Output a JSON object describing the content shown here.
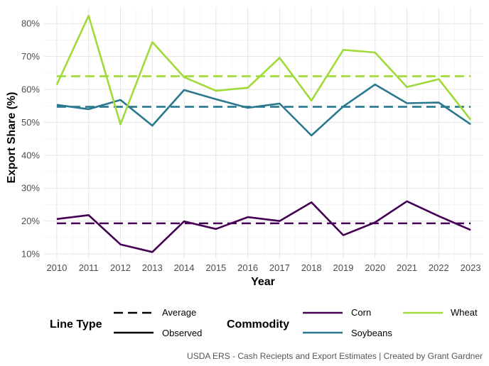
{
  "chart_data": {
    "type": "line",
    "title": "",
    "xlabel": "Year",
    "ylabel": "Export Share (%)",
    "x": [
      2010,
      2011,
      2012,
      2013,
      2014,
      2015,
      2016,
      2017,
      2018,
      2019,
      2020,
      2021,
      2022,
      2023
    ],
    "x_ticks": [
      "2010",
      "2011",
      "2012",
      "2013",
      "2014",
      "2015",
      "2016",
      "2017",
      "2018",
      "2019",
      "2020",
      "2021",
      "2022",
      "2023"
    ],
    "y_ticks": [
      10,
      20,
      30,
      40,
      50,
      60,
      70,
      80
    ],
    "y_tick_labels": [
      "10%",
      "20%",
      "30%",
      "40%",
      "50%",
      "60%",
      "70%",
      "80%"
    ],
    "xlim": [
      2009.6,
      2023.4
    ],
    "ylim": [
      8.5,
      85
    ],
    "grid": true,
    "series": [
      {
        "name": "Corn",
        "color": "#440154",
        "values": [
          20.6,
          21.8,
          12.9,
          10.6,
          19.9,
          17.6,
          21.2,
          20.0,
          25.7,
          15.7,
          19.6,
          26.0,
          21.5,
          17.3
        ],
        "average": 19.3
      },
      {
        "name": "Soybeans",
        "color": "#2a788e",
        "values": [
          55.3,
          54.0,
          56.8,
          49.0,
          59.8,
          57.0,
          54.4,
          55.7,
          46.0,
          54.8,
          61.5,
          55.8,
          56.0,
          49.4
        ],
        "average": 54.7
      },
      {
        "name": "Wheat",
        "color": "#a0da39",
        "values": [
          61.4,
          82.4,
          49.4,
          74.4,
          63.7,
          59.6,
          60.5,
          69.6,
          56.6,
          72.0,
          71.2,
          60.7,
          63.1,
          50.8
        ],
        "average": 64.0
      }
    ],
    "legend": {
      "placement": "bottom",
      "line_type": {
        "title": "Line Type",
        "entries": [
          "Average",
          "Observed"
        ]
      },
      "commodity": {
        "title": "Commodity",
        "entries": [
          "Corn",
          "Soybeans",
          "Wheat"
        ]
      }
    },
    "caption": "USDA ERS - Cash Reciepts and Export Estimates | Created by Grant Gardner"
  }
}
